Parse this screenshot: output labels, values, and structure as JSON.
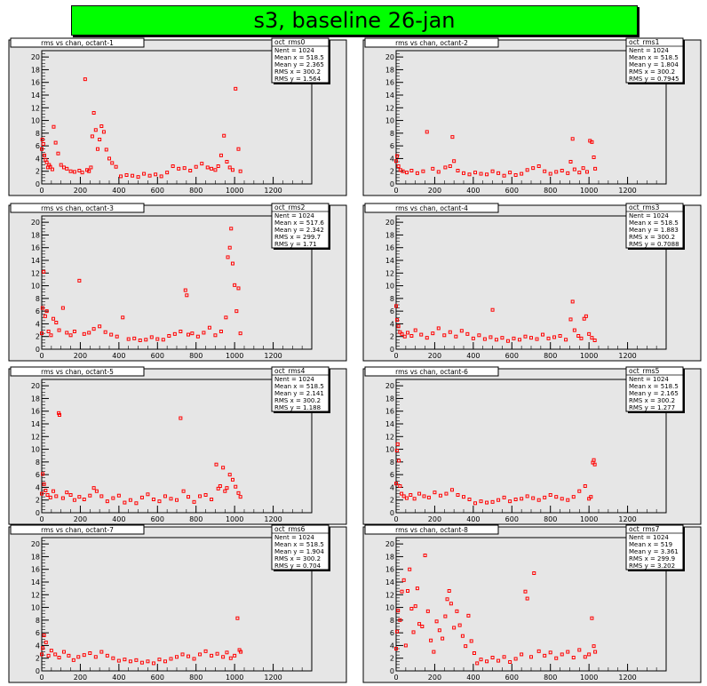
{
  "title": "s3, baseline 26-jan",
  "colors": {
    "background": "#ffffff",
    "frame": "#e6e6e6",
    "title_bg": "#00ff00",
    "marker": "#ff0000"
  },
  "chart_data": [
    {
      "type": "scatter",
      "title": "rms vs chan, octant-1",
      "stats": {
        "name": "oct_rms0",
        "lines": [
          "Nent = 1024",
          "Mean x = 518.5",
          "Mean y = 2.365",
          "RMS x = 300.2",
          "RMS y = 1.564"
        ]
      },
      "xlim": [
        0,
        1400
      ],
      "ylim": [
        0,
        21
      ],
      "xticks": [
        0,
        200,
        400,
        600,
        800,
        1000,
        1200
      ],
      "yticks": [
        0,
        2,
        4,
        6,
        8,
        10,
        12,
        14,
        16,
        18,
        20
      ],
      "series": [
        {
          "x": [
            0,
            3,
            8,
            14,
            20,
            26,
            32,
            38,
            44,
            55,
            62,
            72,
            85,
            100,
            115,
            130,
            150,
            170,
            195,
            210,
            225,
            235,
            245,
            255,
            262,
            270,
            280,
            290,
            300,
            310,
            322,
            335,
            350,
            365,
            385,
            410,
            440,
            470,
            500,
            530,
            560,
            590,
            620,
            650,
            680,
            710,
            740,
            770,
            800,
            830,
            860,
            880,
            900,
            915,
            930,
            945,
            960,
            975,
            990,
            1005,
            1020,
            1030
          ],
          "y": [
            5.5,
            7.0,
            6.3,
            4.5,
            3.8,
            3.4,
            2.6,
            3.0,
            2.7,
            2.3,
            9.0,
            6.5,
            4.8,
            3.0,
            2.6,
            2.4,
            2.0,
            1.9,
            2.1,
            1.8,
            16.5,
            2.2,
            2.0,
            2.6,
            7.5,
            11.2,
            8.5,
            5.5,
            7.0,
            9.1,
            8.2,
            5.4,
            4.0,
            3.3,
            2.7,
            1.2,
            1.4,
            1.3,
            1.1,
            1.6,
            1.3,
            1.5,
            1.2,
            1.8,
            2.8,
            2.4,
            2.5,
            2.1,
            2.7,
            3.2,
            2.6,
            2.4,
            2.2,
            2.8,
            4.5,
            7.6,
            3.5,
            2.6,
            2.2,
            15.0,
            5.5,
            2.0
          ]
        }
      ]
    },
    {
      "type": "scatter",
      "title": "rms vs chan, octant-2",
      "stats": {
        "name": "oct_rms1",
        "lines": [
          "Nent = 1024",
          "Mean x = 518.5",
          "Mean y = 1.804",
          "RMS x = 300.2",
          "RMS y = 0.7945"
        ]
      },
      "xlim": [
        0,
        1400
      ],
      "ylim": [
        0,
        21
      ],
      "xticks": [
        0,
        200,
        400,
        600,
        800,
        1000,
        1200
      ],
      "yticks": [
        0,
        2,
        4,
        6,
        8,
        10,
        12,
        14,
        16,
        18,
        20
      ],
      "series": [
        {
          "x": [
            0,
            5,
            12,
            22,
            35,
            55,
            80,
            110,
            140,
            160,
            190,
            220,
            255,
            280,
            292,
            300,
            320,
            350,
            380,
            410,
            440,
            470,
            500,
            530,
            560,
            590,
            620,
            650,
            680,
            710,
            740,
            770,
            800,
            830,
            860,
            890,
            905,
            915,
            925,
            950,
            970,
            990,
            1005,
            1015,
            1025,
            1032
          ],
          "y": [
            3.6,
            4.4,
            2.8,
            2.2,
            2.0,
            1.8,
            2.1,
            1.7,
            2.0,
            8.2,
            2.4,
            1.9,
            2.6,
            2.8,
            7.4,
            3.6,
            2.1,
            1.7,
            1.5,
            1.8,
            1.6,
            1.5,
            2.0,
            1.7,
            1.3,
            1.8,
            1.4,
            1.6,
            2.2,
            2.5,
            2.8,
            2.0,
            1.6,
            1.9,
            2.1,
            1.7,
            3.5,
            7.1,
            2.3,
            1.8,
            2.5,
            1.9,
            6.8,
            6.6,
            4.2,
            2.4
          ]
        }
      ]
    },
    {
      "type": "scatter",
      "title": "rms vs chan, octant-3",
      "stats": {
        "name": "oct_rms2",
        "lines": [
          "Nent = 1024",
          "Mean x = 517.6",
          "Mean y = 2.342",
          "RMS x = 299.7",
          "RMS y = 1.71"
        ]
      },
      "xlim": [
        0,
        1400
      ],
      "ylim": [
        0,
        21
      ],
      "xticks": [
        0,
        200,
        400,
        600,
        800,
        1000,
        1200
      ],
      "yticks": [
        0,
        2,
        4,
        6,
        8,
        10,
        12,
        14,
        16,
        18,
        20
      ],
      "series": [
        {
          "x": [
            0,
            4,
            10,
            18,
            26,
            35,
            48,
            60,
            75,
            90,
            110,
            130,
            150,
            170,
            195,
            220,
            245,
            270,
            300,
            330,
            360,
            390,
            420,
            450,
            480,
            510,
            540,
            570,
            600,
            630,
            660,
            690,
            720,
            745,
            752,
            760,
            780,
            810,
            840,
            870,
            900,
            930,
            955,
            965,
            975,
            982,
            990,
            1000,
            1010,
            1020,
            1030
          ],
          "y": [
            2.5,
            6.5,
            12.2,
            5.2,
            6.0,
            2.8,
            2.2,
            4.8,
            4.2,
            3.0,
            6.5,
            2.6,
            2.2,
            2.8,
            10.8,
            2.4,
            2.6,
            3.2,
            3.6,
            2.7,
            2.3,
            2.0,
            5.0,
            1.6,
            1.7,
            1.4,
            1.5,
            1.9,
            1.6,
            1.5,
            2.1,
            2.4,
            2.8,
            9.3,
            8.5,
            2.3,
            2.5,
            2.0,
            2.6,
            3.4,
            2.2,
            2.8,
            5.0,
            14.5,
            16.0,
            19.0,
            13.5,
            10.1,
            6.0,
            9.6,
            2.5
          ]
        }
      ]
    },
    {
      "type": "scatter",
      "title": "rms vs chan, octant-4",
      "stats": {
        "name": "oct_rms3",
        "lines": [
          "Nent = 1024",
          "Mean x = 518.5",
          "Mean y = 1.883",
          "RMS x = 300.2",
          "RMS y = 0.7088"
        ]
      },
      "xlim": [
        0,
        1400
      ],
      "ylim": [
        0,
        21
      ],
      "xticks": [
        0,
        200,
        400,
        600,
        800,
        1000,
        1200
      ],
      "yticks": [
        0,
        2,
        4,
        6,
        8,
        10,
        12,
        14,
        16,
        18,
        20
      ],
      "series": [
        {
          "x": [
            0,
            5,
            12,
            20,
            30,
            45,
            60,
            80,
            100,
            130,
            160,
            190,
            220,
            250,
            280,
            310,
            340,
            370,
            400,
            430,
            460,
            490,
            500,
            520,
            550,
            580,
            610,
            640,
            670,
            700,
            730,
            760,
            790,
            820,
            850,
            880,
            905,
            915,
            925,
            945,
            960,
            975,
            985,
            1000,
            1015,
            1030
          ],
          "y": [
            6.8,
            4.6,
            3.6,
            2.7,
            2.4,
            2.0,
            2.6,
            2.1,
            3.0,
            2.3,
            1.8,
            2.5,
            3.3,
            2.2,
            2.7,
            2.0,
            2.9,
            2.4,
            1.7,
            2.2,
            1.6,
            1.9,
            6.2,
            1.5,
            1.8,
            1.3,
            1.7,
            1.5,
            2.0,
            1.8,
            1.6,
            2.3,
            1.7,
            1.9,
            2.1,
            1.5,
            4.7,
            7.5,
            3.0,
            2.1,
            1.7,
            4.8,
            5.2,
            2.4,
            1.8,
            1.4
          ]
        }
      ]
    },
    {
      "type": "scatter",
      "title": "rms vs chan, octant-5",
      "stats": {
        "name": "oct_rms4",
        "lines": [
          "Nent = 1024",
          "Mean x = 518.5",
          "Mean y = 2.141",
          "RMS x = 300.2",
          "RMS y = 1.188"
        ]
      },
      "xlim": [
        0,
        1400
      ],
      "ylim": [
        0,
        21
      ],
      "xticks": [
        0,
        200,
        400,
        600,
        800,
        1000,
        1200
      ],
      "yticks": [
        0,
        2,
        4,
        6,
        8,
        10,
        12,
        14,
        16,
        18,
        20
      ],
      "series": [
        {
          "x": [
            0,
            5,
            12,
            20,
            30,
            45,
            60,
            75,
            88,
            92,
            110,
            130,
            150,
            170,
            195,
            220,
            250,
            270,
            285,
            310,
            340,
            370,
            400,
            430,
            460,
            490,
            520,
            550,
            580,
            610,
            640,
            670,
            700,
            720,
            735,
            760,
            790,
            820,
            850,
            880,
            905,
            915,
            925,
            940,
            950,
            960,
            975,
            990,
            1005,
            1020,
            1030
          ],
          "y": [
            3.0,
            6.1,
            4.5,
            3.5,
            2.8,
            2.4,
            3.4,
            2.6,
            15.7,
            15.4,
            2.3,
            3.2,
            2.8,
            2.0,
            2.5,
            2.1,
            2.7,
            3.9,
            3.4,
            2.6,
            1.8,
            2.3,
            2.7,
            1.6,
            2.0,
            1.5,
            2.4,
            2.9,
            2.1,
            1.8,
            2.6,
            2.2,
            2.0,
            14.9,
            3.4,
            2.5,
            1.7,
            2.6,
            2.8,
            2.1,
            7.6,
            3.8,
            4.2,
            7.1,
            3.4,
            3.9,
            6.0,
            5.2,
            4.1,
            3.1,
            2.5
          ]
        }
      ]
    },
    {
      "type": "scatter",
      "title": "rms vs chan, octant-6",
      "stats": {
        "name": "oct_rms5",
        "lines": [
          "Nent = 1024",
          "Mean x = 518.5",
          "Mean y = 2.165",
          "RMS x = 300.2",
          "RMS y = 1.277"
        ]
      },
      "xlim": [
        0,
        1400
      ],
      "ylim": [
        0,
        21
      ],
      "xticks": [
        0,
        200,
        400,
        600,
        800,
        1000,
        1200
      ],
      "yticks": [
        0,
        2,
        4,
        6,
        8,
        10,
        12,
        14,
        16,
        18,
        20
      ],
      "series": [
        {
          "x": [
            0,
            4,
            8,
            14,
            20,
            28,
            40,
            55,
            75,
            95,
            120,
            145,
            170,
            200,
            230,
            260,
            290,
            320,
            350,
            380,
            410,
            440,
            470,
            500,
            530,
            560,
            590,
            620,
            650,
            680,
            710,
            740,
            770,
            800,
            830,
            860,
            890,
            920,
            950,
            980,
            1000,
            1010,
            1020,
            1025,
            1030
          ],
          "y": [
            4.6,
            9.8,
            10.8,
            8.2,
            4.2,
            3.0,
            2.6,
            2.3,
            2.8,
            2.2,
            3.0,
            2.6,
            2.4,
            3.2,
            2.7,
            3.0,
            3.6,
            2.8,
            2.5,
            2.1,
            1.5,
            1.8,
            1.6,
            1.7,
            2.0,
            2.4,
            1.8,
            2.1,
            2.2,
            2.6,
            2.3,
            2.0,
            2.4,
            2.8,
            2.5,
            2.2,
            2.0,
            2.5,
            3.4,
            4.2,
            2.2,
            2.5,
            7.9,
            8.3,
            7.6
          ]
        }
      ]
    },
    {
      "type": "scatter",
      "title": "rms vs chan, octant-7",
      "stats": {
        "name": "oct_rms6",
        "lines": [
          "Nent = 1024",
          "Mean x = 518.5",
          "Mean y = 1.904",
          "RMS x = 300.2",
          "RMS y = 0.704"
        ]
      },
      "xlim": [
        0,
        1400
      ],
      "ylim": [
        0,
        21
      ],
      "xticks": [
        0,
        200,
        400,
        600,
        800,
        1000,
        1200
      ],
      "yticks": [
        0,
        2,
        4,
        6,
        8,
        10,
        12,
        14,
        16,
        18,
        20
      ],
      "series": [
        {
          "x": [
            0,
            5,
            12,
            22,
            35,
            50,
            70,
            90,
            115,
            140,
            165,
            190,
            220,
            250,
            280,
            310,
            340,
            370,
            400,
            430,
            460,
            490,
            520,
            550,
            580,
            610,
            640,
            670,
            700,
            730,
            760,
            790,
            820,
            850,
            880,
            910,
            940,
            960,
            980,
            1000,
            1015,
            1025,
            1032
          ],
          "y": [
            2.6,
            3.6,
            5.6,
            4.5,
            2.4,
            3.2,
            2.6,
            2.1,
            3.0,
            2.4,
            1.7,
            2.2,
            2.5,
            2.8,
            2.2,
            3.0,
            2.4,
            2.0,
            1.6,
            1.8,
            1.5,
            1.7,
            1.3,
            1.5,
            1.2,
            1.8,
            1.5,
            1.9,
            2.2,
            2.6,
            2.3,
            1.9,
            2.6,
            3.1,
            2.4,
            2.7,
            2.2,
            2.9,
            2.0,
            2.4,
            8.3,
            3.3,
            3.0
          ]
        }
      ]
    },
    {
      "type": "scatter",
      "title": "rms vs chan, octant-8",
      "stats": {
        "name": "oct_rms7",
        "lines": [
          "Nent = 1024",
          "Mean x = 519",
          "Mean y = 3.361",
          "RMS x = 299.9",
          "RMS y = 3.202"
        ]
      },
      "xlim": [
        0,
        1400
      ],
      "ylim": [
        0,
        21
      ],
      "xticks": [
        0,
        200,
        400,
        600,
        800,
        1000,
        1200
      ],
      "yticks": [
        0,
        2,
        4,
        6,
        8,
        10,
        12,
        14,
        16,
        18,
        20
      ],
      "series": [
        {
          "x": [
            0,
            5,
            10,
            20,
            30,
            40,
            50,
            60,
            70,
            80,
            90,
            100,
            110,
            120,
            135,
            150,
            165,
            180,
            195,
            210,
            225,
            240,
            255,
            265,
            275,
            285,
            300,
            315,
            330,
            345,
            360,
            375,
            390,
            405,
            420,
            440,
            470,
            500,
            530,
            560,
            590,
            620,
            650,
            670,
            680,
            700,
            715,
            740,
            770,
            800,
            830,
            860,
            890,
            920,
            950,
            980,
            1000,
            1015,
            1025,
            1032
          ],
          "y": [
            3.5,
            6.2,
            9.5,
            8.0,
            12.5,
            14.3,
            4.0,
            12.6,
            16.0,
            9.8,
            6.1,
            10.2,
            13.0,
            7.4,
            7.0,
            18.2,
            9.4,
            4.8,
            3.0,
            7.8,
            6.4,
            5.1,
            8.6,
            11.3,
            12.6,
            10.6,
            6.8,
            9.4,
            7.2,
            5.5,
            3.9,
            8.7,
            4.7,
            2.8,
            1.2,
            1.8,
            1.5,
            2.1,
            1.6,
            2.2,
            1.4,
            1.9,
            2.6,
            12.5,
            11.4,
            2.2,
            15.4,
            3.1,
            2.4,
            2.9,
            2.0,
            2.6,
            3.0,
            2.1,
            3.3,
            2.2,
            2.6,
            8.3,
            3.9,
            3.0
          ]
        }
      ]
    }
  ]
}
